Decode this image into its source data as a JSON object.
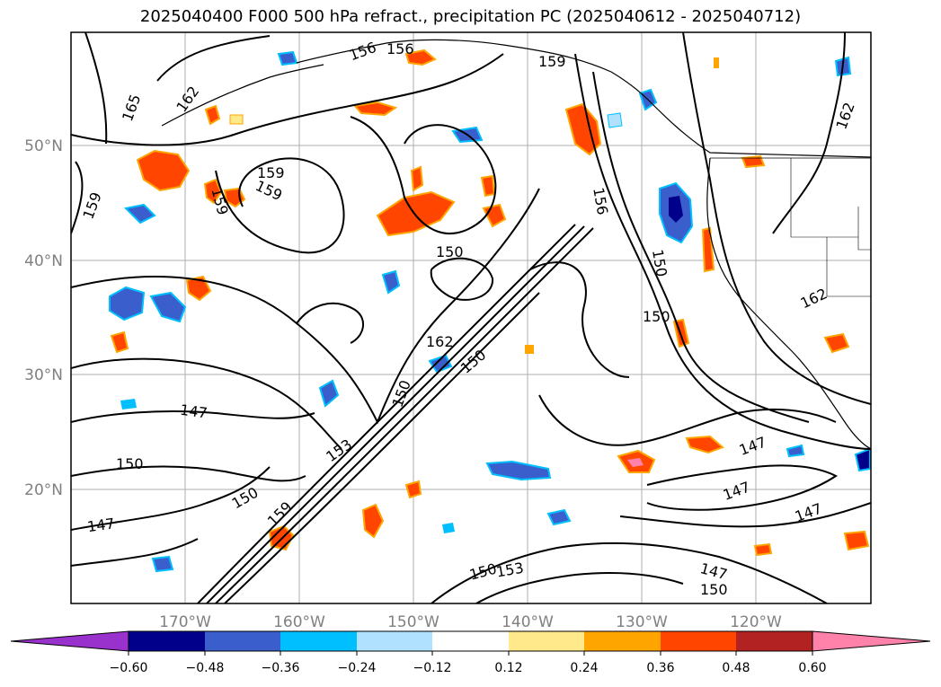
{
  "title": "2025040400 F000 500 hPa refract., precipitation PC (2025040612 - 2025040712)",
  "map": {
    "lat_labels": [
      "50°N",
      "40°N",
      "30°N",
      "20°N"
    ],
    "lon_labels": [
      "170°W",
      "160°W",
      "150°W",
      "140°W",
      "130°W",
      "120°W"
    ],
    "contour_labels": [
      "165",
      "162",
      "159",
      "159",
      "159",
      "156",
      "156",
      "159",
      "162",
      "159",
      "150",
      "150",
      "150",
      "162",
      "150",
      "150",
      "147",
      "150",
      "147",
      "153",
      "150",
      "159",
      "147",
      "147",
      "147",
      "150",
      "153",
      "147",
      "150",
      "162",
      "156"
    ],
    "colors": {
      "contour": "#000000",
      "coast": "#000000",
      "grid": "#999999"
    }
  },
  "colorbar": {
    "ticks": [
      "−0.60",
      "−0.48",
      "−0.36",
      "−0.24",
      "−0.12",
      "0.12",
      "0.24",
      "0.36",
      "0.48",
      "0.60"
    ],
    "colors": [
      "#9932cc",
      "#00008b",
      "#3a5fcd",
      "#00bfff",
      "#b0e2ff",
      "#ffffff",
      "#ffe98a",
      "#ffa500",
      "#ff4500",
      "#b22222",
      "#ff82ab"
    ]
  }
}
